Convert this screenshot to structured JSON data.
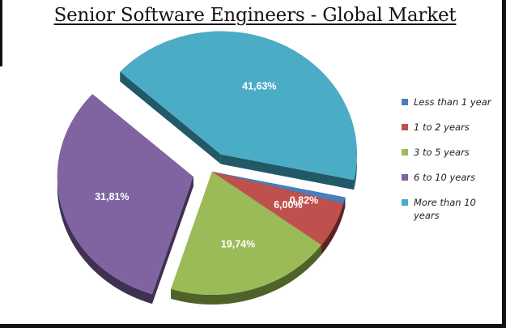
{
  "chart_data": {
    "type": "pie",
    "title": "Senior Software Engineers - Global Market",
    "label_format": "percent_comma",
    "slices": [
      {
        "name": "Less than 1 year",
        "value": 0.82,
        "label": "0,82%",
        "color": "#4A7EBB",
        "side": "#243F60",
        "exploded": false
      },
      {
        "name": "1 to 2 years",
        "value": 6.0,
        "label": "6,00%",
        "color": "#C0504D",
        "side": "#5E2321",
        "exploded": false
      },
      {
        "name": "3 to 5 years",
        "value": 19.74,
        "label": "19,74%",
        "color": "#9BBB59",
        "side": "#4F6228",
        "exploded": false
      },
      {
        "name": "6 to 10 years",
        "value": 31.81,
        "label": "31,81%",
        "color": "#8064A2",
        "side": "#3F3151",
        "exploded": true
      },
      {
        "name": "More than 10 years",
        "value": 41.63,
        "label": "41,63%",
        "color": "#4BACC6",
        "side": "#215968",
        "exploded": true
      }
    ],
    "legend_position": "right",
    "view": "3d-exploded"
  }
}
